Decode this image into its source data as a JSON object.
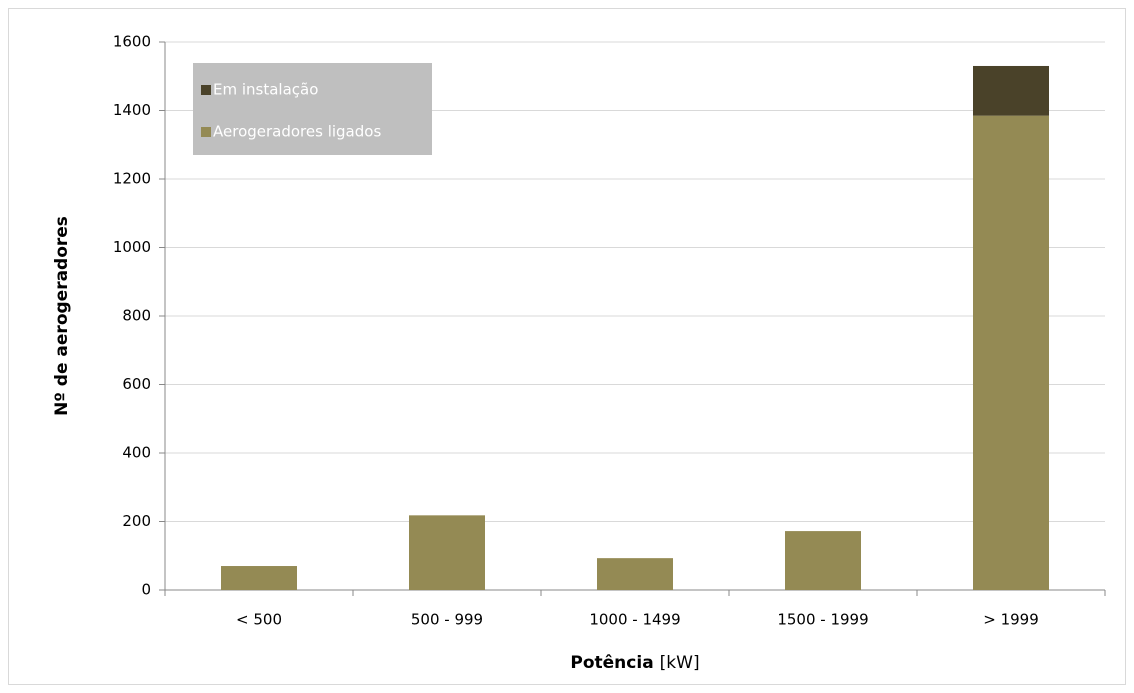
{
  "chart_data": {
    "type": "stacked_bar",
    "categories": [
      "< 500",
      "500 - 999",
      "1000 - 1499",
      "1500 - 1999",
      "> 1999"
    ],
    "series": [
      {
        "name": "Aerogeradores ligados",
        "color": "#948a54",
        "values": [
          70,
          218,
          93,
          172,
          1385
        ]
      },
      {
        "name": "Em instalação",
        "color": "#4a4229",
        "values": [
          0,
          0,
          0,
          0,
          145
        ]
      }
    ],
    "ylim": [
      0,
      1600
    ],
    "yticks": [
      0,
      200,
      400,
      600,
      800,
      1000,
      1200,
      1400,
      1600
    ],
    "grid": true,
    "y_label": "Nº de aerogeradores",
    "x_label": {
      "bold": "Potência",
      "rest": "[kW]"
    },
    "legend": "top-left"
  }
}
